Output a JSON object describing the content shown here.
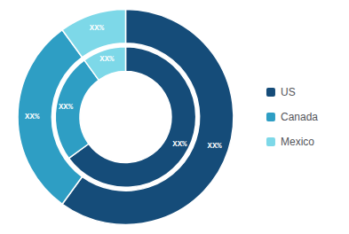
{
  "chart_data": {
    "type": "pie",
    "categories": [
      "US",
      "Canada",
      "Mexico"
    ],
    "colors": [
      "#154c79",
      "#2e9ec4",
      "#7dd8e8"
    ],
    "series": [
      {
        "values": [
          60,
          30,
          10
        ],
        "value_labels": [
          "XX%",
          "XX%",
          "XX%"
        ]
      },
      {
        "values": [
          65,
          25,
          10
        ],
        "value_labels": [
          "XX%",
          "XX%",
          "XX%"
        ]
      }
    ],
    "data_labels": true,
    "legend": "right"
  }
}
